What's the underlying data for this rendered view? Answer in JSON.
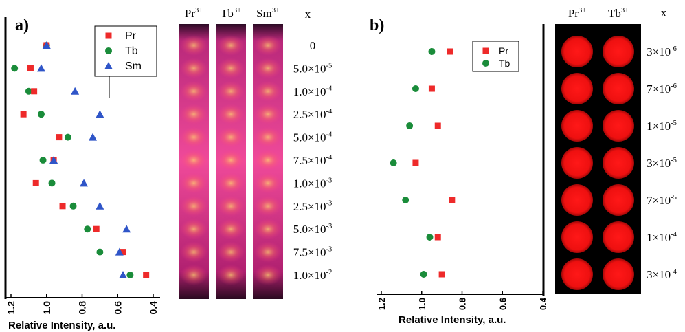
{
  "panels": [
    {
      "id": "a",
      "label": "a)",
      "xlabel": "Relative Intensity, a.u.",
      "x_axis": {
        "min": 0.4,
        "max": 1.2,
        "reversed": true,
        "ticks": [
          "1.2",
          "1.0",
          "0.8",
          "0.6",
          "0.4"
        ]
      },
      "legend": [
        "Pr",
        "Tb",
        "Sm"
      ],
      "column_headers": [
        "Pr",
        "Tb",
        "Sm"
      ],
      "column_superscript": "3+",
      "x_header": "x",
      "concentrations": [
        {
          "m": "0",
          "e": ""
        },
        {
          "m": "5.0×10",
          "e": "-5"
        },
        {
          "m": "1.0×10",
          "e": "-4"
        },
        {
          "m": "2.5×10",
          "e": "-4"
        },
        {
          "m": "5.0×10",
          "e": "-4"
        },
        {
          "m": "7.5×10",
          "e": "-4"
        },
        {
          "m": "1.0×10",
          "e": "-3"
        },
        {
          "m": "2.5×10",
          "e": "-3"
        },
        {
          "m": "5.0×10",
          "e": "-3"
        },
        {
          "m": "7.5×10",
          "e": "-3"
        },
        {
          "m": "1.0×10",
          "e": "-2"
        }
      ]
    },
    {
      "id": "b",
      "label": "b)",
      "xlabel": "Relative Intensity, a.u.",
      "x_axis": {
        "min": 0.4,
        "max": 1.2,
        "reversed": true,
        "ticks": [
          "1.2",
          "1.0",
          "0.8",
          "0.6",
          "0.4"
        ]
      },
      "legend": [
        "Pr",
        "Tb"
      ],
      "column_headers": [
        "Pr",
        "Tb"
      ],
      "column_superscript": "3+",
      "x_header": "x",
      "concentrations": [
        {
          "m": "3×10",
          "e": "-6"
        },
        {
          "m": "7×10",
          "e": "-6"
        },
        {
          "m": "1×10",
          "e": "-5"
        },
        {
          "m": "3×10",
          "e": "-5"
        },
        {
          "m": "7×10",
          "e": "-5"
        },
        {
          "m": "1×10",
          "e": "-4"
        },
        {
          "m": "3×10",
          "e": "-4"
        }
      ]
    }
  ],
  "chart_data": [
    {
      "type": "scatter",
      "panel": "a",
      "xlabel": "Relative Intensity, a.u.",
      "xlim": [
        1.2,
        0.4
      ],
      "categories": [
        "0",
        "5.0×10^-5",
        "1.0×10^-4",
        "2.5×10^-4",
        "5.0×10^-4",
        "7.5×10^-4",
        "1.0×10^-3",
        "2.5×10^-3",
        "5.0×10^-3",
        "7.5×10^-3",
        "1.0×10^-2"
      ],
      "legend_position": "top-right",
      "series": [
        {
          "name": "Pr",
          "color": "#ee2a2a",
          "marker": "square",
          "values": [
            1.0,
            1.09,
            1.07,
            1.13,
            0.93,
            0.96,
            1.06,
            0.91,
            0.72,
            0.57,
            0.44
          ]
        },
        {
          "name": "Tb",
          "color": "#1a8c3a",
          "marker": "circle",
          "values": [
            1.0,
            1.18,
            1.1,
            1.03,
            0.88,
            1.02,
            0.97,
            0.85,
            0.77,
            0.7,
            0.53
          ]
        },
        {
          "name": "Sm",
          "color": "#2f55c8",
          "marker": "triangle",
          "values": [
            1.0,
            1.03,
            0.84,
            0.7,
            0.74,
            0.96,
            0.79,
            0.7,
            0.55,
            0.59,
            0.57
          ]
        }
      ]
    },
    {
      "type": "scatter",
      "panel": "b",
      "xlabel": "Relative Intensity, a.u.",
      "xlim": [
        1.2,
        0.4
      ],
      "categories": [
        "3×10^-6",
        "7×10^-6",
        "1×10^-5",
        "3×10^-5",
        "7×10^-5",
        "1×10^-4",
        "3×10^-4"
      ],
      "legend_position": "top-right",
      "series": [
        {
          "name": "Pr",
          "color": "#ee2a2a",
          "marker": "square",
          "values": [
            0.86,
            0.95,
            0.92,
            1.03,
            0.85,
            0.92,
            0.9
          ]
        },
        {
          "name": "Tb",
          "color": "#1a8c3a",
          "marker": "circle",
          "values": [
            0.95,
            1.03,
            1.06,
            1.14,
            1.08,
            0.96,
            0.99
          ]
        }
      ]
    }
  ],
  "colors": {
    "pr": "#ee2a2a",
    "tb": "#1a8c3a",
    "sm": "#2f55c8",
    "axis": "#000000"
  }
}
